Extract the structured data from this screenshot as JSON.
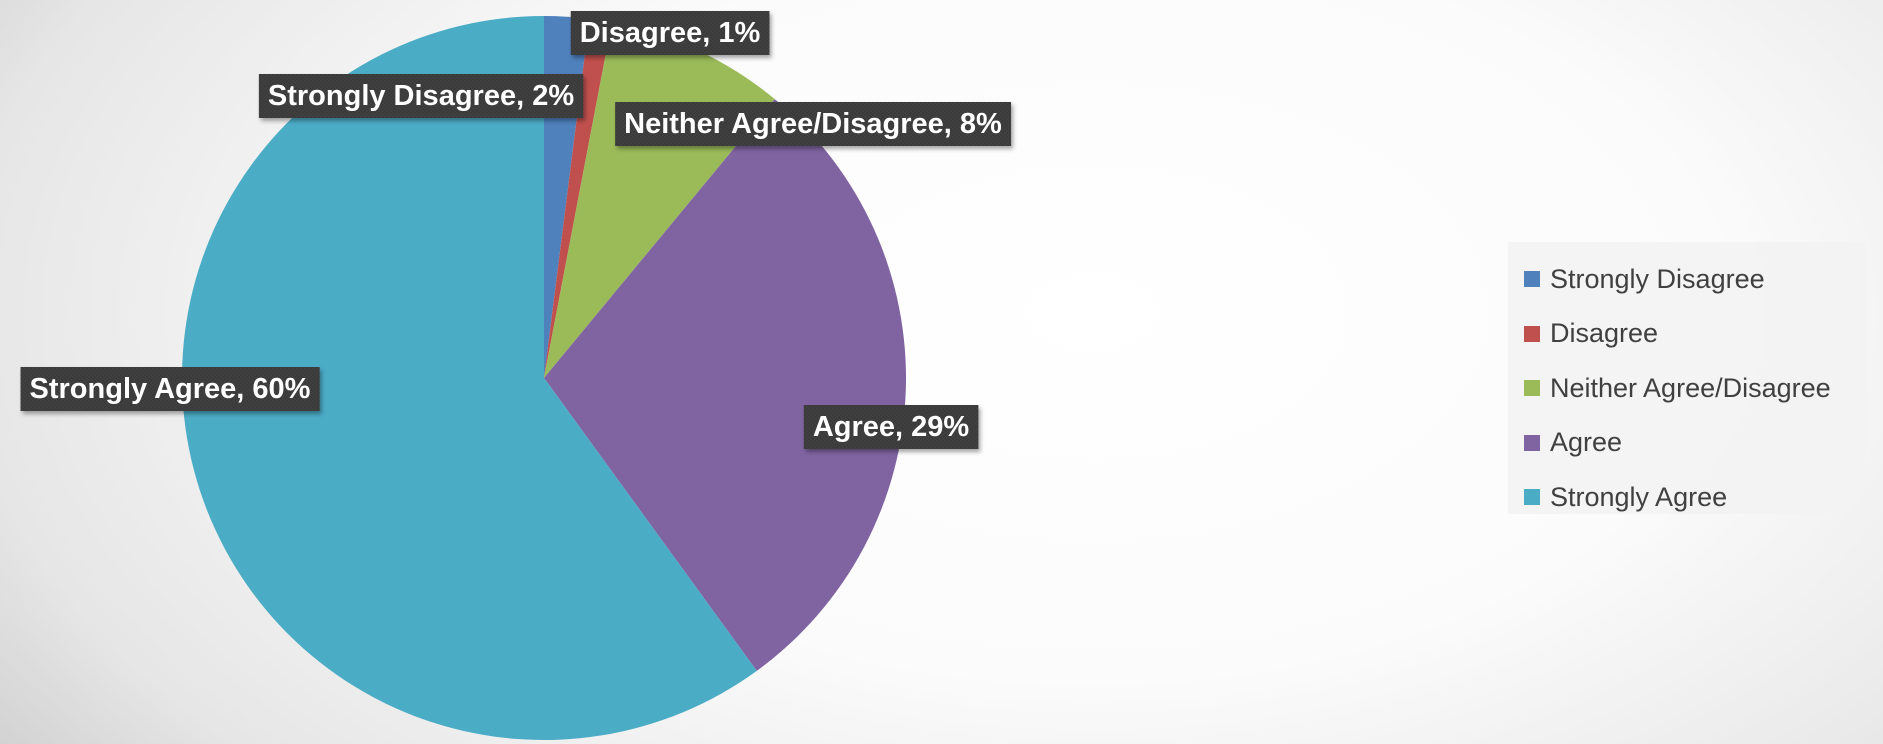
{
  "chart_data": {
    "type": "pie",
    "categories": [
      "Strongly Disagree",
      "Disagree",
      "Neither Agree/Disagree",
      "Agree",
      "Strongly Agree"
    ],
    "values": [
      2,
      1,
      8,
      29,
      60
    ],
    "unit": "%",
    "data_labels": [
      "Strongly Disagree, 2%",
      "Disagree, 1%",
      "Neither Agree/Disagree, 8%",
      "Agree, 29%",
      "Strongly Agree, 60%"
    ],
    "colors": [
      "#4F81BD",
      "#C0504D",
      "#9BBB59",
      "#8064A2",
      "#4BACC6"
    ],
    "legend_position": "right"
  },
  "legend": {
    "items": [
      "Strongly Disagree",
      "Disagree",
      "Neither Agree/Disagree",
      "Agree",
      "Strongly Agree"
    ]
  }
}
